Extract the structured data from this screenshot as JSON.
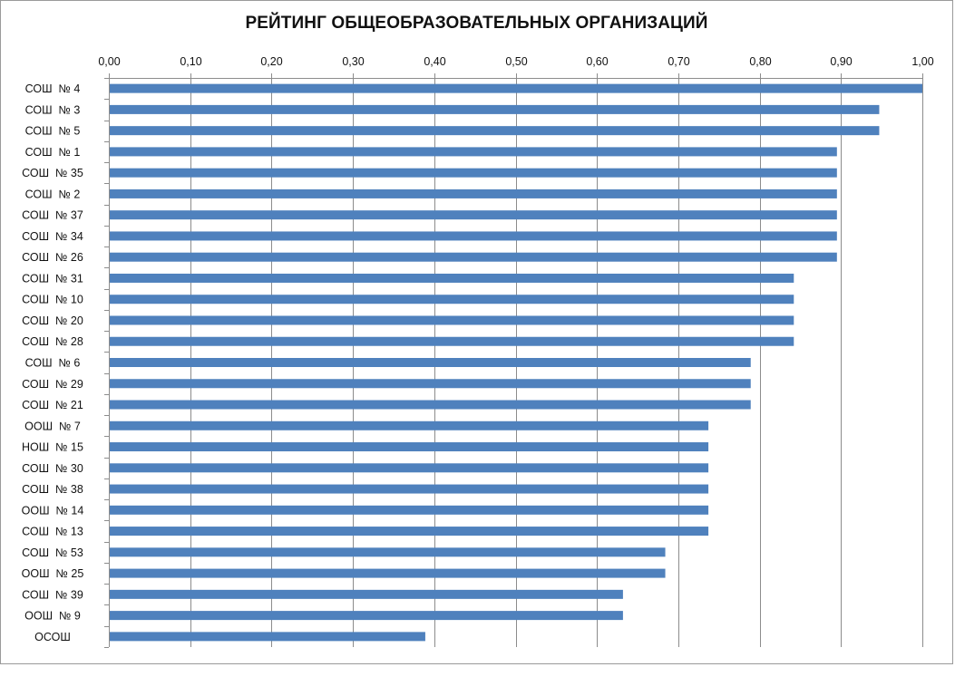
{
  "chart_data": {
    "type": "bar",
    "orientation": "horizontal",
    "title": "РЕЙТИНГ ОБЩЕОБРАЗОВАТЕЛЬНЫХ ОРГАНИЗАЦИЙ",
    "xlabel": "",
    "ylabel": "",
    "xlim": [
      0,
      1
    ],
    "x_ticks": [
      "0,00",
      "0,10",
      "0,20",
      "0,30",
      "0,40",
      "0,50",
      "0,60",
      "0,70",
      "0,80",
      "0,90",
      "1,00"
    ],
    "x_axis_position": "top",
    "grid": "vertical major gridlines",
    "legend": "none",
    "bar_color": "#4f81bd",
    "categories": [
      "СОШ  № 4",
      "СОШ  № 3",
      "СОШ  № 5",
      "СОШ  № 1",
      "СОШ  № 35",
      "СОШ  № 2",
      "СОШ  № 37",
      "СОШ  № 34",
      "СОШ  № 26",
      "СОШ  № 31",
      "СОШ  № 10",
      "СОШ  № 20",
      "СОШ  № 28",
      "СОШ  № 6",
      "СОШ  № 29",
      "СОШ  № 21",
      "ООШ  № 7",
      "НОШ  № 15",
      "СОШ  № 30",
      "СОШ  № 38",
      "ООШ  № 14",
      "СОШ  № 13",
      "СОШ  № 53",
      "ООШ  № 25",
      "СОШ  № 39",
      "ООШ  № 9",
      "ОСОШ"
    ],
    "values": [
      1.0,
      0.947,
      0.947,
      0.895,
      0.895,
      0.895,
      0.895,
      0.895,
      0.895,
      0.842,
      0.842,
      0.842,
      0.842,
      0.789,
      0.789,
      0.789,
      0.737,
      0.737,
      0.737,
      0.737,
      0.737,
      0.737,
      0.684,
      0.684,
      0.632,
      0.632,
      0.389
    ]
  }
}
